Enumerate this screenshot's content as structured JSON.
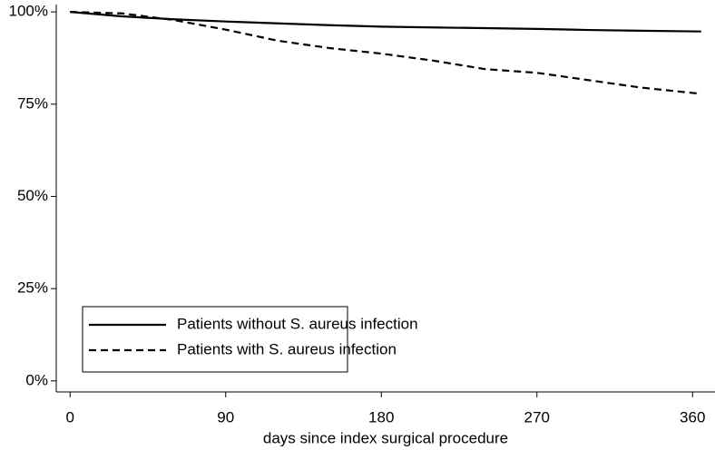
{
  "chart_data": {
    "type": "line",
    "xlabel": "days since index surgical procedure",
    "x": [
      0,
      30,
      60,
      90,
      120,
      150,
      180,
      210,
      240,
      270,
      300,
      330,
      365
    ],
    "series": [
      {
        "name": "Patients without S. aureus infection",
        "color": "#000000",
        "dash": "solid",
        "values": [
          100,
          98.8,
          98,
          97.4,
          96.9,
          96.4,
          96,
          95.8,
          95.6,
          95.4,
          95.1,
          94.9,
          94.7
        ]
      },
      {
        "name": "Patients with S. aureus infection",
        "color": "#000000",
        "dash": "dashed",
        "values": [
          100,
          99.6,
          97.8,
          95.2,
          92.2,
          90.2,
          88.7,
          86.8,
          84.5,
          83.5,
          81.5,
          79.5,
          77.8
        ]
      }
    ],
    "xlim": [
      -8,
      373
    ],
    "ylim": [
      -3,
      102
    ],
    "xticks": [
      0,
      90,
      180,
      270,
      360
    ],
    "yticks": [
      {
        "value": 0,
        "label": "0%"
      },
      {
        "value": 25,
        "label": "25%"
      },
      {
        "value": 50,
        "label": "50%"
      },
      {
        "value": 75,
        "label": "75%"
      },
      {
        "value": 100,
        "label": "100%"
      }
    ],
    "grid": false,
    "legend": "lower-left"
  }
}
